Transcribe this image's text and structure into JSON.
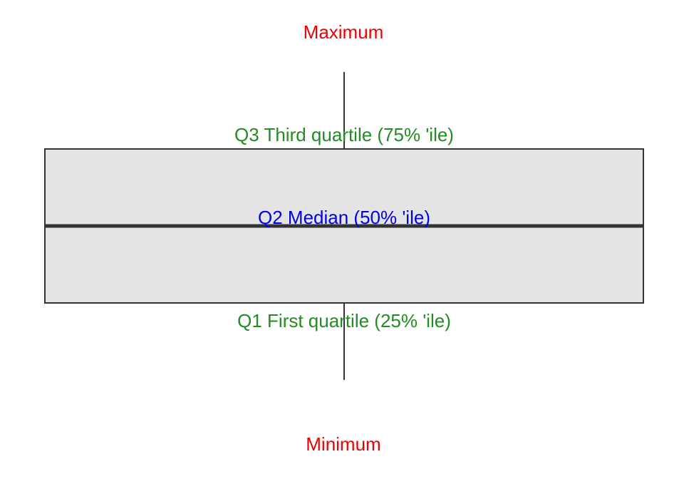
{
  "labels": {
    "maximum": "Maximum",
    "q3": "Q3 Third quartile (75% 'ile)",
    "median": "Q2 Median (50% 'ile)",
    "q1": "Q1 First quartile (25% 'ile)",
    "minimum": "Minimum"
  },
  "colors": {
    "extreme_label": "#ee0000",
    "quartile_label": "#228b22",
    "median_label": "#0000ee",
    "box_fill": "#e4e4e4",
    "box_stroke": "#333333",
    "line": "#333333"
  }
}
